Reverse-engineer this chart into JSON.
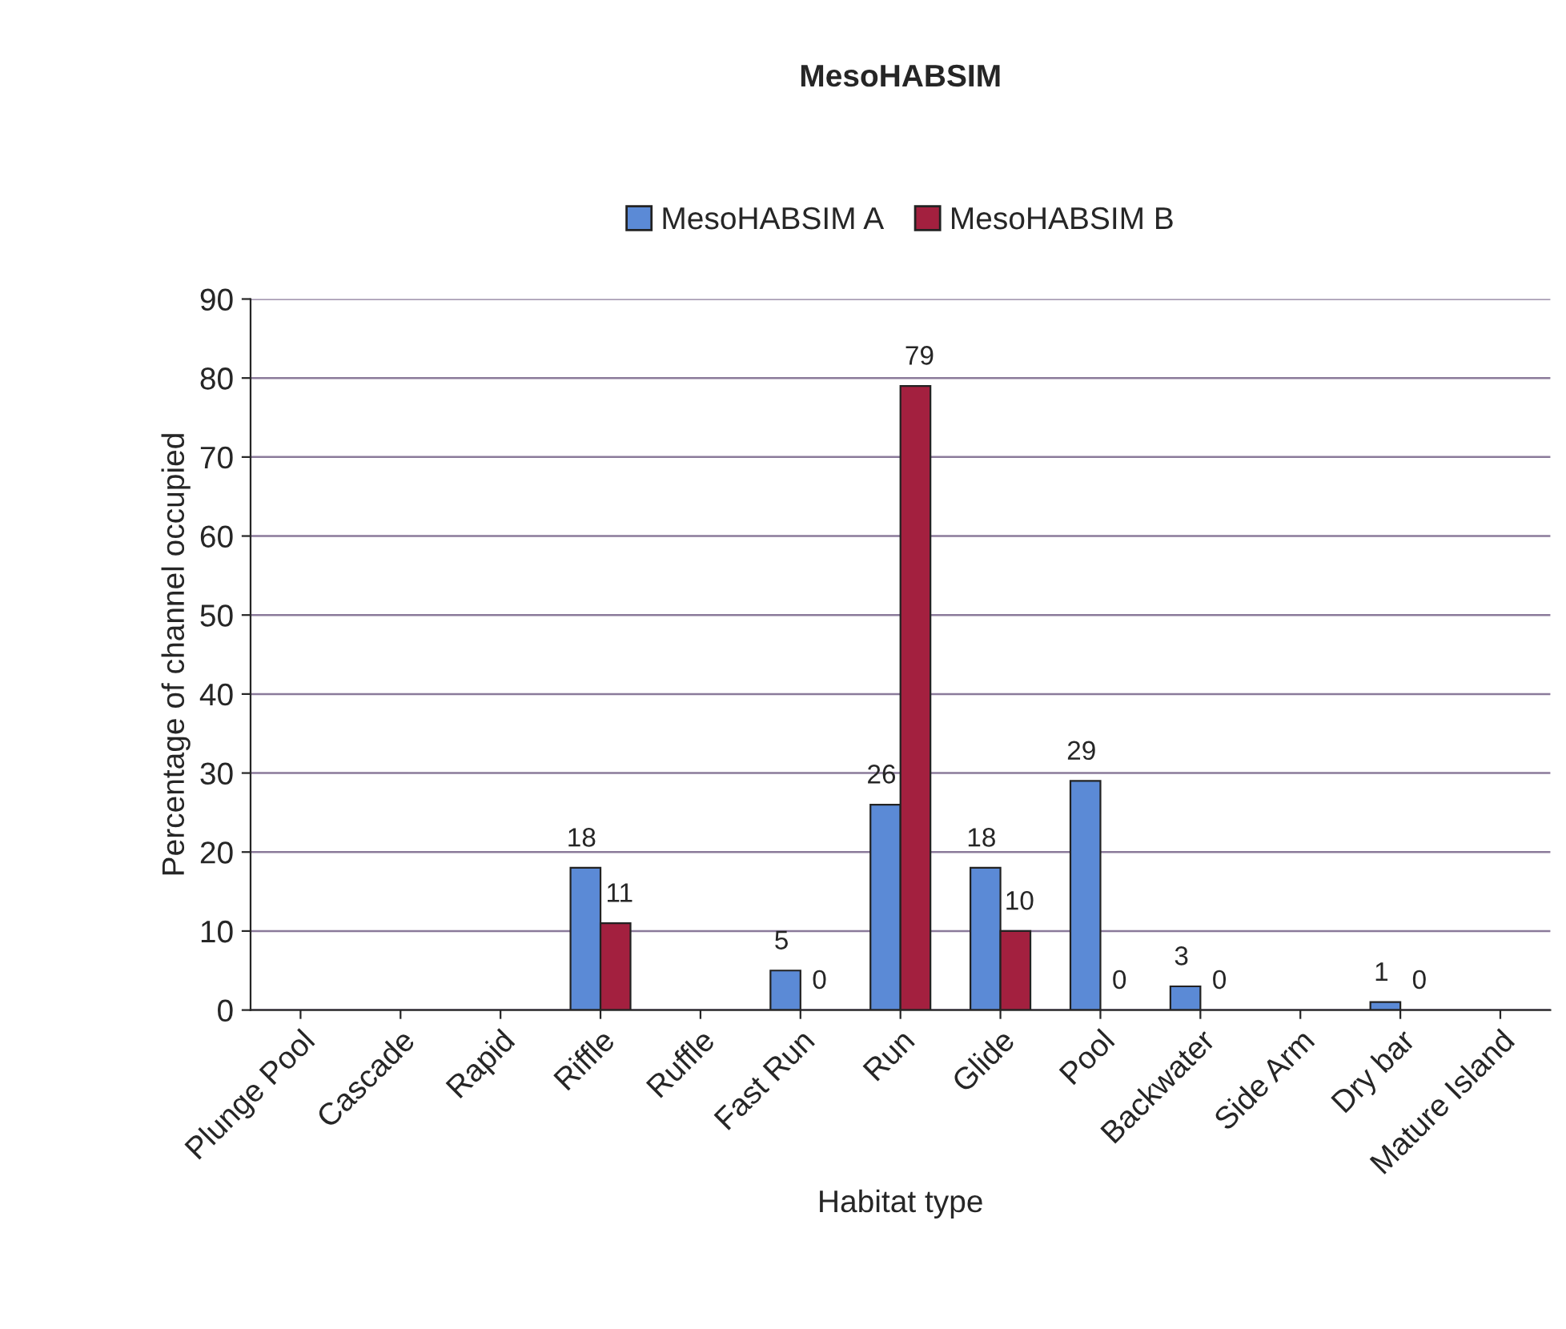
{
  "chart_data": {
    "type": "bar",
    "title": "MesoHABSIM",
    "xlabel": "Habitat type",
    "ylabel": "Percentage of channel occupied",
    "categories": [
      "Plunge Pool",
      "Cascade",
      "Rapid",
      "Riffle",
      "Ruffle",
      "Fast Run",
      "Run",
      "Glide",
      "Pool",
      "Backwater",
      "Side Arm",
      "Dry bar",
      "Mature Island"
    ],
    "series": [
      {
        "name": "MesoHABSIM A",
        "color": "#5b8ad6",
        "values": [
          null,
          null,
          null,
          18,
          null,
          5,
          26,
          18,
          29,
          3,
          null,
          1,
          null
        ],
        "value_labels": [
          null,
          null,
          null,
          "18",
          null,
          "5",
          "26",
          "18",
          "29",
          "3",
          null,
          "1",
          null
        ]
      },
      {
        "name": "MesoHABSIM B",
        "color": "#a3203f",
        "values": [
          null,
          null,
          null,
          11,
          null,
          0,
          79,
          10,
          0,
          0,
          null,
          0,
          null
        ],
        "value_labels": [
          null,
          null,
          null,
          "11",
          null,
          "0",
          "79",
          "10",
          "0",
          "0",
          null,
          "0",
          null
        ]
      }
    ],
    "ylim": [
      0,
      90
    ],
    "yticks": [
      0,
      10,
      20,
      30,
      40,
      50,
      60,
      70,
      80,
      90
    ],
    "grid": "y",
    "legend": "top"
  }
}
